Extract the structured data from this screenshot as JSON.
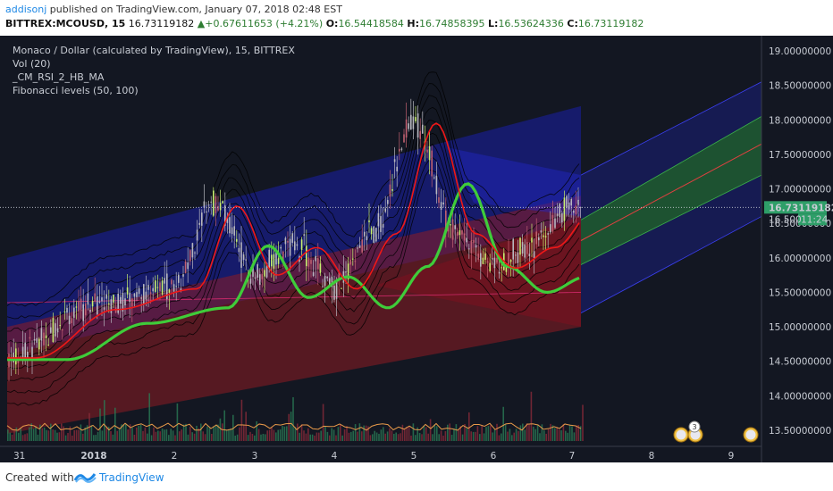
{
  "header": {
    "author": "addisonj",
    "published": "published on TradingView.com, January 07, 2018 02:48 EST",
    "symbol": "BITTREX:MCOUSD, 15",
    "last": "16.73119182",
    "change": "+0.67611653 (+4.21%)",
    "o_label": "O:",
    "o": "16.54418584",
    "h_label": "H:",
    "h": "16.74858395",
    "l_label": "L:",
    "l": "16.53624336",
    "c_label": "C:",
    "c": "16.73119182"
  },
  "legend": {
    "title": "Monaco / Dollar (calculated by TradingView), 15, BITTREX",
    "vol": "Vol (20)",
    "ind1": "_CM_RSI_2_HB_MA",
    "ind2": "Fibonacci levels (50, 100)"
  },
  "price_tag": {
    "value": "16.73119182",
    "time": "11:24",
    "time_prefix": "16.500",
    "color": "#2e9e68"
  },
  "colors": {
    "bg": "#131722",
    "fib_blue": "#1a1fa8",
    "fib_red": "#8e1b22",
    "ma_green": "#3fcc3a",
    "ma_red": "#f01818"
  },
  "chart_data": {
    "type": "line",
    "ylim": [
      13.25,
      19.2
    ],
    "yticks": [
      "19.00000000",
      "18.50000000",
      "18.00000000",
      "17.50000000",
      "17.00000000",
      "16.50000000",
      "16.00000000",
      "15.50000000",
      "15.00000000",
      "14.50000000",
      "14.00000000",
      "13.50000000"
    ],
    "ytick_values": [
      19.0,
      18.5,
      18.0,
      17.5,
      17.0,
      16.5,
      16.0,
      15.5,
      15.0,
      14.5,
      14.0,
      13.5
    ],
    "xticks": [
      "31",
      "2018",
      "2",
      "3",
      "4",
      "5",
      "6",
      "7",
      "8",
      "9"
    ],
    "x_dates": [
      "2017-12-31",
      "2018-01-01",
      "2018-01-02",
      "2018-01-03",
      "2018-01-04",
      "2018-01-05",
      "2018-01-06",
      "2018-01-07",
      "2018-01-08",
      "2018-01-09"
    ],
    "series": [
      {
        "name": "price",
        "x": [
          "2017-12-31",
          "2018-01-01",
          "2018-01-02",
          "2018-01-02 12:00",
          "2018-01-03",
          "2018-01-03 12:00",
          "2018-01-04",
          "2018-01-04 12:00",
          "2018-01-05",
          "2018-01-05 12:00",
          "2018-01-06",
          "2018-01-06 12:00",
          "2018-01-07"
        ],
        "values": [
          14.6,
          15.3,
          15.6,
          16.8,
          15.8,
          16.2,
          15.6,
          16.4,
          18.0,
          16.4,
          15.9,
          16.2,
          16.73
        ]
      }
    ],
    "current_price": 16.73119182
  }
}
